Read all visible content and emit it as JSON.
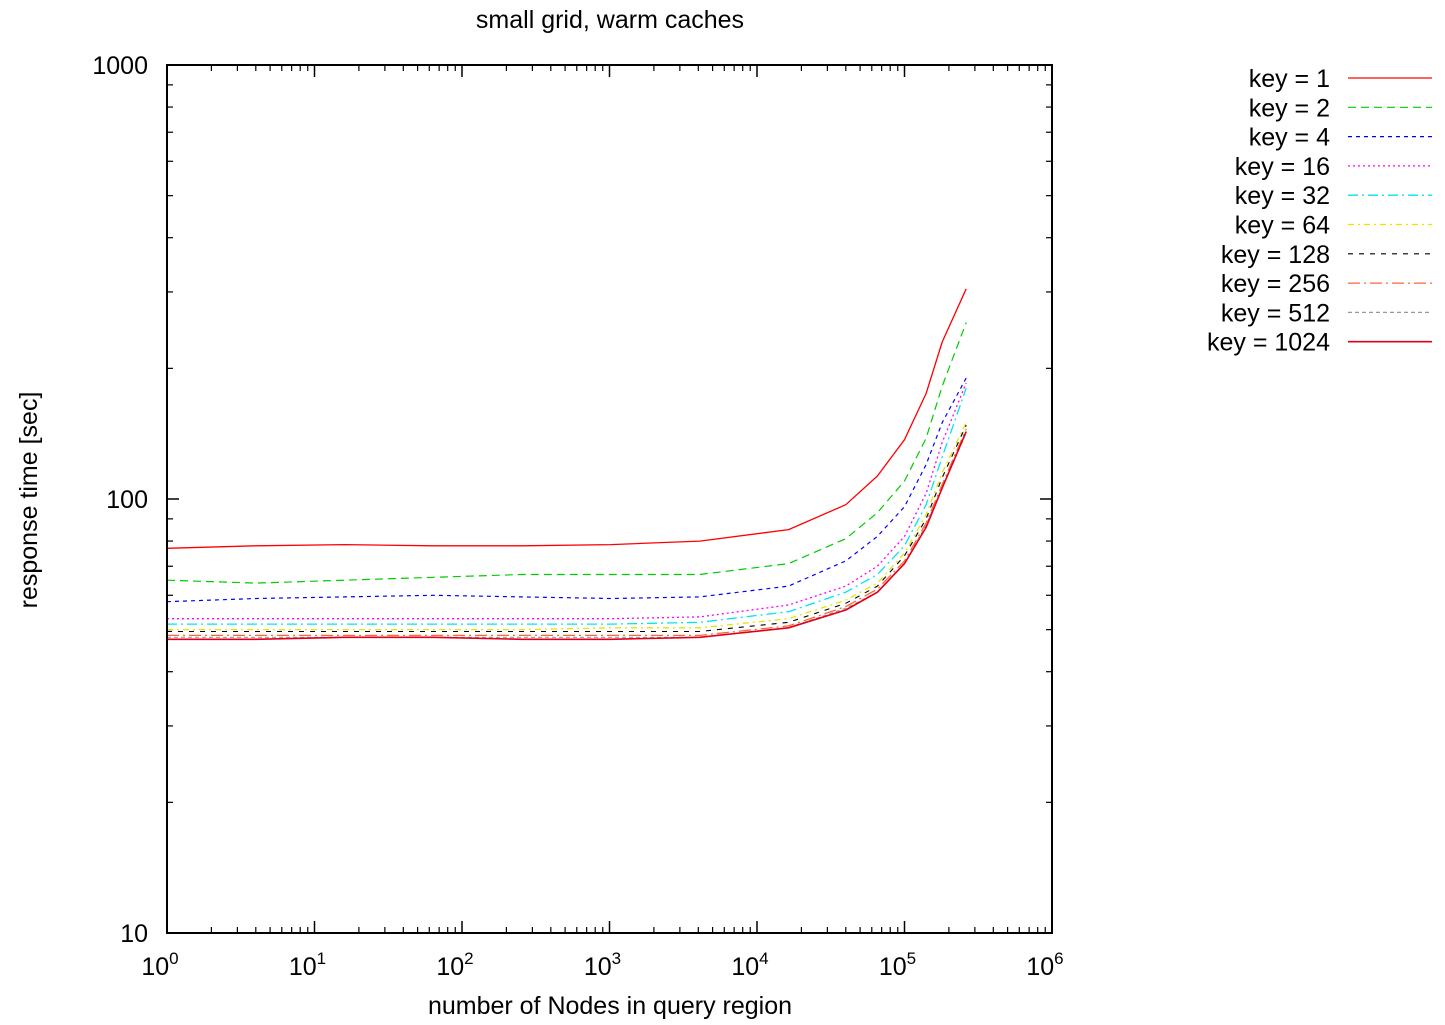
{
  "chart_data": {
    "type": "line",
    "title": "small grid, warm caches",
    "xlabel": "number of Nodes in query region",
    "ylabel": "response time [sec]",
    "x_scale": "log",
    "y_scale": "log",
    "xlim": [
      1,
      1000000
    ],
    "ylim": [
      10,
      1000
    ],
    "x_ticks": [
      {
        "value": 1,
        "base": "10",
        "exp": "0"
      },
      {
        "value": 10,
        "base": "10",
        "exp": "1"
      },
      {
        "value": 100,
        "base": "10",
        "exp": "2"
      },
      {
        "value": 1000,
        "base": "10",
        "exp": "3"
      },
      {
        "value": 10000,
        "base": "10",
        "exp": "4"
      },
      {
        "value": 100000,
        "base": "10",
        "exp": "5"
      },
      {
        "value": 1000000,
        "base": "10",
        "exp": "6"
      }
    ],
    "y_ticks": [
      {
        "value": 10,
        "label": "10"
      },
      {
        "value": 100,
        "label": "100"
      },
      {
        "value": 1000,
        "label": "1000"
      }
    ],
    "grid": false,
    "legend_position": "outside-top-right",
    "x": [
      1,
      4,
      16,
      64,
      256,
      1024,
      4096,
      16384,
      40000,
      65536,
      100000,
      140000,
      180000,
      262144
    ],
    "series": [
      {
        "name": "key = 1",
        "color": "#ff0000",
        "dash": "",
        "width": 1.3,
        "values": [
          77,
          78,
          78.5,
          78,
          78,
          78.5,
          80,
          85,
          97,
          113,
          137,
          175,
          230,
          305
        ]
      },
      {
        "name": "key = 2",
        "color": "#00cc00",
        "dash": "8,5",
        "width": 1.2,
        "values": [
          65,
          64,
          65,
          66,
          67,
          67,
          67,
          71,
          81,
          93,
          110,
          138,
          182,
          255
        ]
      },
      {
        "name": "key = 4",
        "color": "#0000ff",
        "dash": "4,4",
        "width": 1.2,
        "values": [
          58,
          59,
          59.5,
          60,
          59.5,
          59,
          59.5,
          63,
          72,
          82,
          96,
          120,
          150,
          190
        ]
      },
      {
        "name": "key = 16",
        "color": "#ff00ff",
        "dash": "2,3",
        "width": 1.3,
        "values": [
          53,
          53,
          53,
          53,
          53,
          53,
          53.5,
          57,
          63,
          70,
          82,
          103,
          135,
          185
        ]
      },
      {
        "name": "key = 32",
        "color": "#00e5ee",
        "dash": "10,4,2,4",
        "width": 1.3,
        "values": [
          51.5,
          51.5,
          51.5,
          51.5,
          51.5,
          51.5,
          52,
          55,
          61,
          67,
          78,
          97,
          125,
          180
        ]
      },
      {
        "name": "key = 64",
        "color": "#e5e500",
        "dash": "6,4,2,4",
        "width": 1.3,
        "values": [
          50,
          50,
          50,
          50,
          50,
          50.5,
          50.5,
          53,
          58.5,
          64,
          75,
          92,
          115,
          150
        ]
      },
      {
        "name": "key = 128",
        "color": "#000000",
        "dash": "5,6",
        "width": 1.1,
        "values": [
          49.5,
          49.5,
          49.5,
          49.5,
          49.5,
          49.5,
          49.5,
          52,
          57.5,
          63,
          74,
          90,
          112,
          148
        ]
      },
      {
        "name": "key = 256",
        "color": "#ff6633",
        "dash": "12,4,2,4",
        "width": 1.3,
        "values": [
          48.5,
          48.5,
          48.5,
          48.5,
          48.5,
          48.5,
          48.5,
          51,
          56.5,
          62,
          72,
          88,
          108,
          145
        ]
      },
      {
        "name": "key = 512",
        "color": "#999999",
        "dash": "4,3",
        "width": 1.2,
        "values": [
          48,
          48,
          48,
          48,
          48,
          48,
          48,
          50.5,
          56,
          61,
          71,
          87,
          106,
          142
        ]
      },
      {
        "name": "key = 1024",
        "color": "#e0001a",
        "dash": "",
        "width": 1.6,
        "values": [
          47.5,
          47.5,
          48,
          48,
          47.5,
          47.5,
          48,
          50.5,
          55.5,
          61,
          71,
          86,
          106,
          143
        ]
      }
    ]
  }
}
